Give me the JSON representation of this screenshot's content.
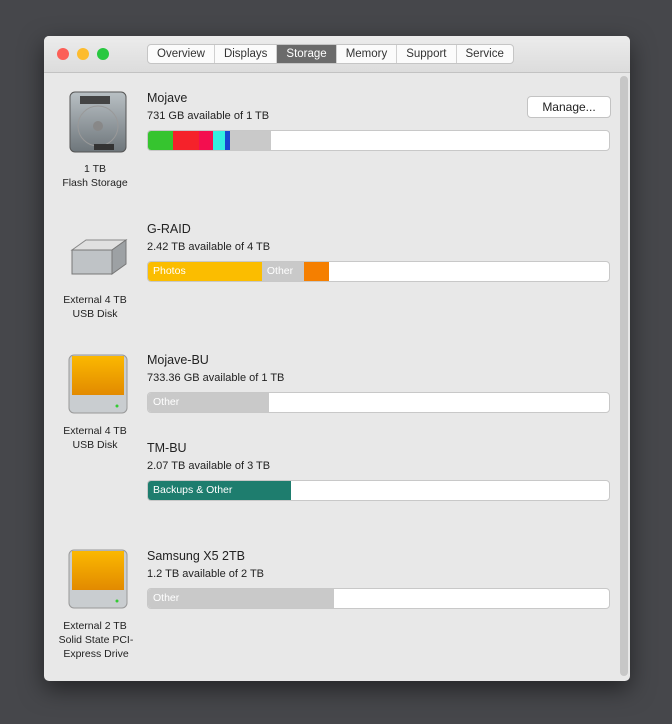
{
  "tabs": [
    "Overview",
    "Displays",
    "Storage",
    "Memory",
    "Support",
    "Service"
  ],
  "selected_tab": "Storage",
  "manage_label": "Manage...",
  "drives": [
    {
      "caption1": "1 TB",
      "caption2": "Flash Storage",
      "volumes": [
        {
          "name": "Mojave",
          "available": "731 GB available of 1 TB",
          "segments": [
            {
              "label": "",
              "color": "#36c42f",
              "percent": 5.4
            },
            {
              "label": "",
              "color": "#f5222a",
              "percent": 5.6
            },
            {
              "label": "",
              "color": "#f30e4f",
              "percent": 3.0
            },
            {
              "label": "",
              "color": "#33eee0",
              "percent": 2.8
            },
            {
              "label": "",
              "color": "#1746d0",
              "percent": 0.9
            },
            {
              "label": "",
              "color": "#c9c9c9",
              "percent": 8.7
            }
          ]
        }
      ]
    },
    {
      "caption1": "External 4 TB",
      "caption2": "USB Disk",
      "volumes": [
        {
          "name": "G-RAID",
          "available": "2.42 TB available of 4 TB",
          "segments": [
            {
              "label": "Photos",
              "color": "#fbbd00",
              "percent": 24.7
            },
            {
              "label": "Other",
              "color": "#c9c9c9",
              "percent": 9.1
            },
            {
              "label": "",
              "color": "#f57f00",
              "percent": 5.4
            }
          ]
        }
      ]
    },
    {
      "caption1": "External 4 TB",
      "caption2": "USB Disk",
      "volumes": [
        {
          "name": "Mojave-BU",
          "available": "733.36 GB available of 1 TB",
          "segments": [
            {
              "label": "Other",
              "color": "#c9c9c9",
              "percent": 26.2
            }
          ]
        },
        {
          "name": "TM-BU",
          "available": "2.07 TB available of 3 TB",
          "segments": [
            {
              "label": "Backups & Other",
              "color": "#1e7d6e",
              "percent": 31
            }
          ]
        }
      ]
    },
    {
      "caption1": "External 2 TB",
      "caption2": "Solid State PCI-Express Drive",
      "volumes": [
        {
          "name": "Samsung X5 2TB",
          "available": "1.2 TB available of 2 TB",
          "segments": [
            {
              "label": "Other",
              "color": "#c9c9c9",
              "percent": 40.3
            }
          ]
        }
      ]
    }
  ]
}
